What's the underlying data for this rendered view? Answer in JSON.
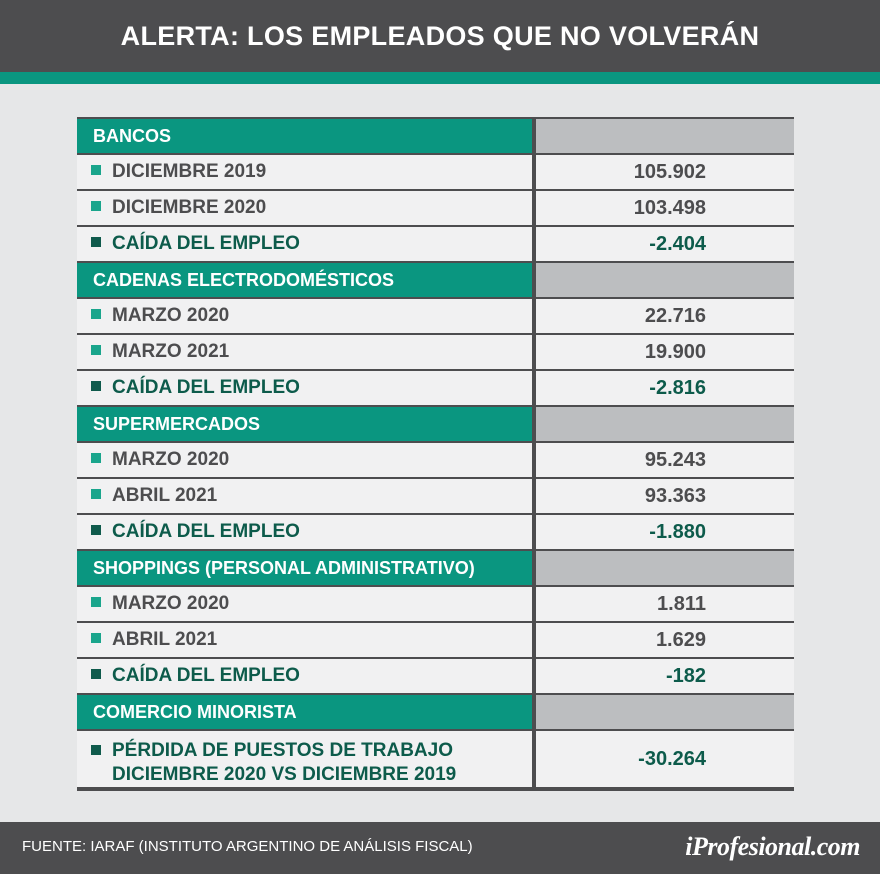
{
  "title": "ALERTA: LOS EMPLEADOS QUE NO VOLVERÁN",
  "sections": [
    {
      "title": "BANCOS",
      "rows": [
        {
          "label": "DICIEMBRE 2019",
          "value": "105.902"
        },
        {
          "label": "DICIEMBRE 2020",
          "value": "103.498"
        },
        {
          "label": "CAÍDA DEL EMPLEO",
          "value": "-2.404"
        }
      ]
    },
    {
      "title": "CADENAS ELECTRODOMÉSTICOS",
      "rows": [
        {
          "label": "MARZO 2020",
          "value": "22.716"
        },
        {
          "label": "MARZO 2021",
          "value": "19.900"
        },
        {
          "label": "CAÍDA DEL EMPLEO",
          "value": "-2.816"
        }
      ]
    },
    {
      "title": "SUPERMERCADOS",
      "rows": [
        {
          "label": "MARZO 2020",
          "value": "95.243"
        },
        {
          "label": "ABRIL 2021",
          "value": "93.363"
        },
        {
          "label": "CAÍDA DEL EMPLEO",
          "value": "-1.880"
        }
      ]
    },
    {
      "title": "SHOPPINGS (PERSONAL ADMINISTRATIVO)",
      "rows": [
        {
          "label": "MARZO 2020",
          "value": "1.811"
        },
        {
          "label": "ABRIL 2021",
          "value": "1.629"
        },
        {
          "label": "CAÍDA DEL EMPLEO",
          "value": "-182"
        }
      ]
    },
    {
      "title": "COMERCIO MINORISTA",
      "rows": [
        {
          "label_line1": "PÉRDIDA DE PUESTOS DE TRABAJO",
          "label_line2": "DICIEMBRE 2020 VS DICIEMBRE 2019",
          "value": "-30.264"
        }
      ]
    }
  ],
  "footer": {
    "source": "FUENTE:  IARAF (INSTITUTO ARGENTINO DE ANÁLISIS FISCAL)",
    "logo": "iProfesional.com"
  },
  "colors": {
    "header_bg": "#4d4d4f",
    "accent_green": "#0a9680",
    "dark_green": "#0d5b4b",
    "page_bg": "#e6e7e8",
    "row_bg": "#f1f1f2",
    "blank_header_cell": "#bcbec0"
  }
}
